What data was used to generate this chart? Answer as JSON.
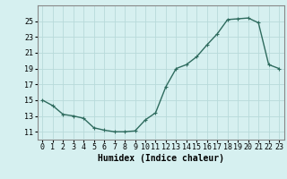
{
  "x": [
    0,
    1,
    2,
    3,
    4,
    5,
    6,
    7,
    8,
    9,
    10,
    11,
    12,
    13,
    14,
    15,
    16,
    17,
    18,
    19,
    20,
    21,
    22,
    23
  ],
  "y": [
    15.0,
    14.3,
    13.2,
    13.0,
    12.7,
    11.5,
    11.2,
    11.0,
    11.0,
    11.1,
    12.5,
    13.4,
    16.7,
    19.0,
    19.5,
    20.5,
    22.0,
    23.4,
    25.2,
    25.3,
    25.4,
    24.8,
    19.5,
    19.0
  ],
  "line_color": "#2e6b5e",
  "marker": "+",
  "marker_size": 3,
  "linewidth": 1.0,
  "background_color": "#d6f0f0",
  "grid_color": "#b8dada",
  "xlabel": "Humidex (Indice chaleur)",
  "xlabel_fontsize": 7,
  "tick_fontsize": 6,
  "ylim": [
    10,
    27
  ],
  "xlim": [
    -0.5,
    23.5
  ],
  "yticks": [
    11,
    13,
    15,
    17,
    19,
    21,
    23,
    25
  ],
  "xticks": [
    0,
    1,
    2,
    3,
    4,
    5,
    6,
    7,
    8,
    9,
    10,
    11,
    12,
    13,
    14,
    15,
    16,
    17,
    18,
    19,
    20,
    21,
    22,
    23
  ]
}
